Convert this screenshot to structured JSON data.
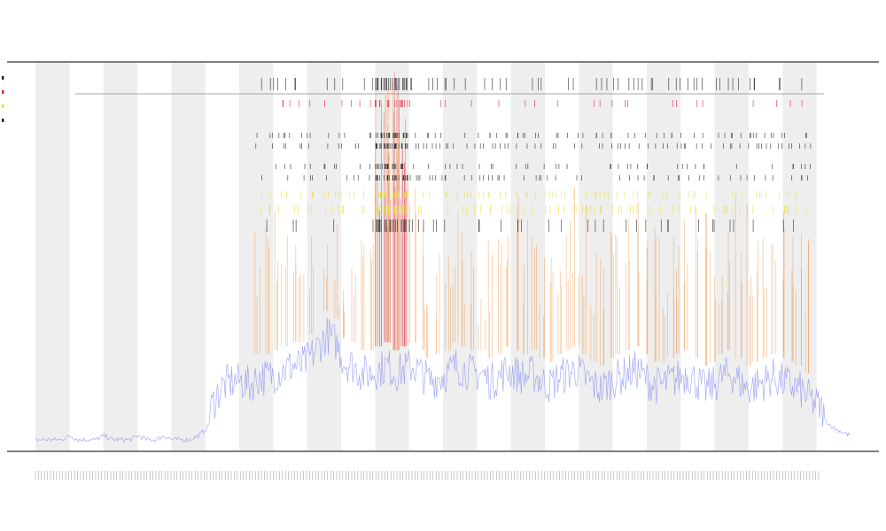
{
  "colors": {
    "band": "#eeeeee",
    "cpu": "#8891f0",
    "event": "#f08020",
    "error": "#e0223a",
    "marker": "#222222",
    "warn": "#e8e030",
    "axis": "#333333"
  },
  "chart_data": {
    "type": "line",
    "title": "",
    "subtitle_1": "",
    "subtitle_2": "",
    "xlabel": "",
    "legend": {
      "position": "top-left",
      "entries": [
        {
          "label": "",
          "color": "#222222"
        },
        {
          "label": "",
          "color": "#e0223a"
        },
        {
          "label": "",
          "color": "#e8e030"
        },
        {
          "label": "",
          "color": "#222222"
        }
      ]
    },
    "grid": false,
    "x_range": [
      0,
      960
    ],
    "y_range": [
      0,
      100
    ],
    "shaded_bands": 12,
    "series": [
      {
        "kind": "baseline",
        "values": [
          3,
          3,
          3,
          3,
          4,
          3,
          3,
          3,
          4,
          3,
          3,
          3,
          4,
          3,
          3,
          4,
          3,
          3,
          3,
          4,
          6,
          12,
          15,
          16,
          16,
          15,
          17,
          17,
          18,
          19,
          20,
          20,
          22,
          25,
          28,
          26,
          21,
          20,
          18,
          18,
          19,
          20,
          18,
          19,
          20,
          18,
          16,
          17,
          18,
          20,
          19,
          18,
          18,
          16,
          17,
          19,
          18,
          17,
          18,
          16,
          15,
          17,
          18,
          19,
          17,
          15,
          14,
          16,
          17,
          18,
          19,
          17,
          15,
          15,
          16,
          17,
          18,
          16,
          14,
          15,
          17,
          18,
          16,
          14,
          15,
          16,
          17,
          16,
          15,
          14,
          12,
          10,
          8,
          6,
          5,
          4
        ]
      },
      {
        "kind": "event_spikes",
        "values": [
          0,
          0,
          0,
          0,
          0,
          0,
          0,
          0,
          0,
          0,
          0,
          0,
          0,
          0,
          0,
          0,
          0,
          0,
          0,
          0,
          0,
          0,
          0,
          0,
          0,
          0,
          58,
          64,
          70,
          60,
          55,
          62,
          58,
          0,
          66,
          60,
          54,
          58,
          62,
          70,
          94,
          96,
          98,
          90,
          70,
          60,
          58,
          52,
          55,
          62,
          58,
          60,
          54,
          56,
          58,
          62,
          66,
          60,
          58,
          54,
          56,
          60,
          64,
          70,
          66,
          58,
          56,
          62,
          66,
          70,
          74,
          68,
          60,
          56,
          58,
          64,
          70,
          68,
          62,
          58,
          60,
          66,
          70,
          66,
          60,
          58,
          56,
          62,
          64,
          60,
          58,
          0,
          0,
          0,
          0,
          0
        ]
      }
    ]
  }
}
